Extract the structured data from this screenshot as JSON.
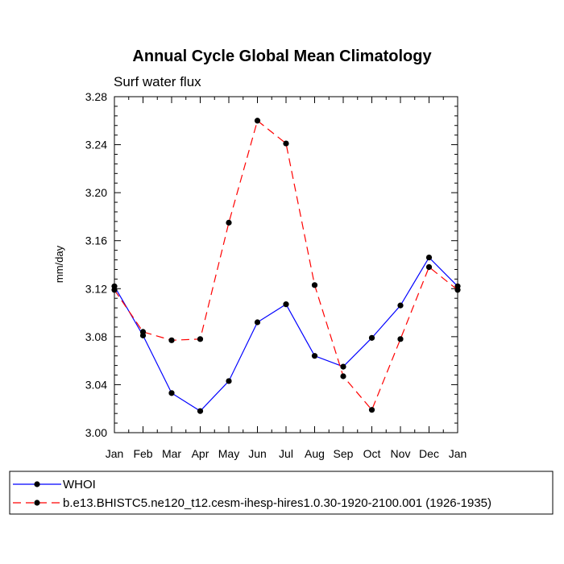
{
  "chart_data": {
    "type": "line",
    "title": "Annual Cycle Global Mean Climatology",
    "subtitle": "Surf water flux",
    "ylabel": "mm/day",
    "xlabel": "",
    "categories": [
      "Jan",
      "Feb",
      "Mar",
      "Apr",
      "May",
      "Jun",
      "Jul",
      "Aug",
      "Sep",
      "Oct",
      "Nov",
      "Dec",
      "Jan"
    ],
    "ylim": [
      3.0,
      3.28
    ],
    "yticks": [
      "3.00",
      "3.04",
      "3.08",
      "3.12",
      "3.16",
      "3.20",
      "3.24",
      "3.28"
    ],
    "series": [
      {
        "name": "WHOI",
        "color": "#0000ff",
        "dash": "solid",
        "values": [
          3.122,
          3.081,
          3.033,
          3.018,
          3.043,
          3.092,
          3.107,
          3.064,
          3.055,
          3.079,
          3.106,
          3.146,
          3.122
        ]
      },
      {
        "name": "b.e13.BHISTC5.ne120_t12.cesm-ihesp-hires1.0.30-1920-2100.001 (1926-1935)",
        "color": "#ff0000",
        "dash": "dashed",
        "values": [
          3.119,
          3.084,
          3.077,
          3.078,
          3.175,
          3.26,
          3.241,
          3.123,
          3.047,
          3.019,
          3.078,
          3.138,
          3.119
        ]
      }
    ],
    "legend_position": "bottom"
  }
}
